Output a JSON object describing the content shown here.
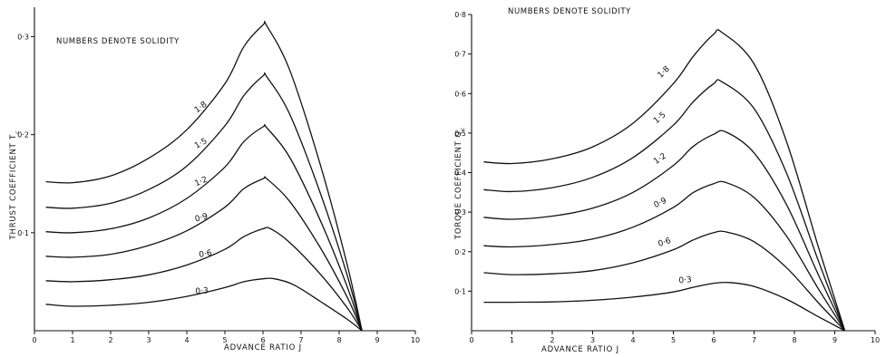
{
  "chart_data": [
    {
      "type": "line",
      "note": "NUMBERS DENOTE SOLIDITY",
      "xlabel": "ADVANCE RATIO  J",
      "ylabel": "THRUST  COEFFICIENT  T",
      "ylabel_sub": "c",
      "xlim": [
        0,
        10
      ],
      "ylim": [
        0,
        0.33
      ],
      "xticks": [
        "0",
        "1",
        "2",
        "3",
        "4",
        "5",
        "6",
        "7",
        "8",
        "9",
        "10"
      ],
      "yticks": [
        {
          "value": 0.1,
          "label": "0·1"
        },
        {
          "value": 0.2,
          "label": "0·2"
        },
        {
          "value": 0.3,
          "label": "0·3"
        }
      ],
      "series": [
        {
          "name": "0·3",
          "x": [
            0.3,
            1,
            2,
            3,
            4,
            5,
            5.5,
            6,
            6.3,
            6.8,
            7.5,
            8.2,
            8.6
          ],
          "y": [
            0.027,
            0.025,
            0.026,
            0.029,
            0.035,
            0.044,
            0.05,
            0.053,
            0.053,
            0.047,
            0.03,
            0.012,
            0.0
          ]
        },
        {
          "name": "0·6",
          "x": [
            0.3,
            1,
            2,
            3,
            4,
            5,
            5.5,
            6,
            6.2,
            6.7,
            7.5,
            8.2,
            8.6
          ],
          "y": [
            0.051,
            0.05,
            0.052,
            0.057,
            0.067,
            0.083,
            0.096,
            0.104,
            0.104,
            0.09,
            0.058,
            0.024,
            0.0
          ]
        },
        {
          "name": "0·9",
          "x": [
            0.3,
            1,
            2,
            3,
            4,
            5,
            5.5,
            6,
            6.1,
            6.7,
            7.5,
            8.2,
            8.6
          ],
          "y": [
            0.076,
            0.075,
            0.078,
            0.087,
            0.102,
            0.126,
            0.145,
            0.155,
            0.155,
            0.132,
            0.085,
            0.035,
            0.0
          ]
        },
        {
          "name": "1·2",
          "x": [
            0.3,
            1,
            2,
            3,
            4,
            5,
            5.5,
            6,
            6.1,
            6.7,
            7.5,
            8.2,
            8.6
          ],
          "y": [
            0.101,
            0.1,
            0.104,
            0.115,
            0.135,
            0.167,
            0.193,
            0.208,
            0.207,
            0.177,
            0.113,
            0.046,
            0.0
          ]
        },
        {
          "name": "1·5",
          "x": [
            0.3,
            1,
            2,
            3,
            4,
            5,
            5.5,
            6,
            6.1,
            6.7,
            7.5,
            8.2,
            8.6
          ],
          "y": [
            0.126,
            0.125,
            0.13,
            0.144,
            0.168,
            0.209,
            0.24,
            0.26,
            0.259,
            0.221,
            0.141,
            0.058,
            0.0
          ]
        },
        {
          "name": "1·8",
          "x": [
            0.3,
            1,
            2,
            3,
            4,
            5,
            5.5,
            6,
            6.1,
            6.7,
            7.5,
            8.2,
            8.6
          ],
          "y": [
            0.152,
            0.151,
            0.158,
            0.176,
            0.205,
            0.252,
            0.29,
            0.312,
            0.311,
            0.266,
            0.17,
            0.069,
            0.0
          ]
        }
      ],
      "curve_labels": [
        {
          "text": "0·3",
          "x": 4.4,
          "y": 0.038,
          "angle": -4
        },
        {
          "text": "0·6",
          "x": 4.5,
          "y": 0.076,
          "angle": -10
        },
        {
          "text": "0·9",
          "x": 4.4,
          "y": 0.113,
          "angle": -16
        },
        {
          "text": "1·2",
          "x": 4.4,
          "y": 0.15,
          "angle": -24
        },
        {
          "text": "1·5",
          "x": 4.4,
          "y": 0.189,
          "angle": -30
        },
        {
          "text": "1·8",
          "x": 4.4,
          "y": 0.226,
          "angle": -36
        }
      ]
    },
    {
      "type": "line",
      "note": "NUMBERS DENOTE SOLIDITY",
      "xlabel": "ADVANCE RATIO  J",
      "ylabel": "TORQUE  COEFFICIENT  Q",
      "ylabel_sub": "c",
      "xlim": [
        0,
        10
      ],
      "ylim": [
        0,
        0.8
      ],
      "xticks": [
        "0",
        "1",
        "2",
        "3",
        "4",
        "5",
        "6",
        "7",
        "8",
        "9",
        "10"
      ],
      "yticks": [
        {
          "value": 0.1,
          "label": "0·1"
        },
        {
          "value": 0.2,
          "label": "0·2"
        },
        {
          "value": 0.3,
          "label": "0·3"
        },
        {
          "value": 0.4,
          "label": "0·4"
        },
        {
          "value": 0.5,
          "label": "0·5"
        },
        {
          "value": 0.6,
          "label": "0·6"
        },
        {
          "value": 0.7,
          "label": "0·7"
        },
        {
          "value": 0.8,
          "label": "0·8"
        }
      ],
      "series": [
        {
          "name": "0·3",
          "x": [
            0.3,
            1,
            2,
            3,
            4,
            5,
            5.5,
            6,
            6.4,
            7,
            7.8,
            8.6,
            9.25
          ],
          "y": [
            0.072,
            0.072,
            0.073,
            0.077,
            0.085,
            0.098,
            0.11,
            0.12,
            0.122,
            0.112,
            0.08,
            0.035,
            0.0
          ]
        },
        {
          "name": "0·6",
          "x": [
            0.3,
            1,
            2,
            3,
            4,
            5,
            5.5,
            6,
            6.3,
            7,
            7.8,
            8.6,
            9.25
          ],
          "y": [
            0.147,
            0.142,
            0.144,
            0.152,
            0.172,
            0.205,
            0.23,
            0.248,
            0.25,
            0.225,
            0.16,
            0.07,
            0.0
          ]
        },
        {
          "name": "0·9",
          "x": [
            0.3,
            1,
            2,
            3,
            4,
            5,
            5.5,
            6,
            6.3,
            7,
            7.8,
            8.6,
            9.25
          ],
          "y": [
            0.215,
            0.212,
            0.218,
            0.232,
            0.262,
            0.312,
            0.35,
            0.372,
            0.375,
            0.337,
            0.24,
            0.105,
            0.0
          ]
        },
        {
          "name": "1·2",
          "x": [
            0.3,
            1,
            2,
            3,
            4,
            5,
            5.5,
            6,
            6.3,
            7,
            7.8,
            8.6,
            9.25
          ],
          "y": [
            0.287,
            0.282,
            0.29,
            0.31,
            0.35,
            0.418,
            0.467,
            0.497,
            0.503,
            0.45,
            0.32,
            0.14,
            0.0
          ]
        },
        {
          "name": "1·5",
          "x": [
            0.3,
            1,
            2,
            3,
            4,
            5,
            5.5,
            6,
            6.2,
            7,
            7.8,
            8.6,
            9.25
          ],
          "y": [
            0.357,
            0.352,
            0.362,
            0.388,
            0.438,
            0.52,
            0.58,
            0.625,
            0.63,
            0.562,
            0.4,
            0.175,
            0.0
          ]
        },
        {
          "name": "1·8",
          "x": [
            0.3,
            1,
            2,
            3,
            4,
            5,
            5.5,
            6,
            6.2,
            7,
            7.8,
            8.6,
            9.25
          ],
          "y": [
            0.427,
            0.423,
            0.435,
            0.465,
            0.525,
            0.625,
            0.695,
            0.75,
            0.755,
            0.675,
            0.48,
            0.21,
            0.0
          ]
        }
      ],
      "curve_labels": [
        {
          "text": "0·3",
          "x": 5.3,
          "y": 0.122,
          "angle": -6
        },
        {
          "text": "0·6",
          "x": 4.8,
          "y": 0.218,
          "angle": -18
        },
        {
          "text": "0·9",
          "x": 4.7,
          "y": 0.318,
          "angle": -26
        },
        {
          "text": "1·2",
          "x": 4.7,
          "y": 0.43,
          "angle": -34
        },
        {
          "text": "1·5",
          "x": 4.7,
          "y": 0.534,
          "angle": -40
        },
        {
          "text": "1·8",
          "x": 4.8,
          "y": 0.65,
          "angle": -44
        }
      ]
    }
  ]
}
